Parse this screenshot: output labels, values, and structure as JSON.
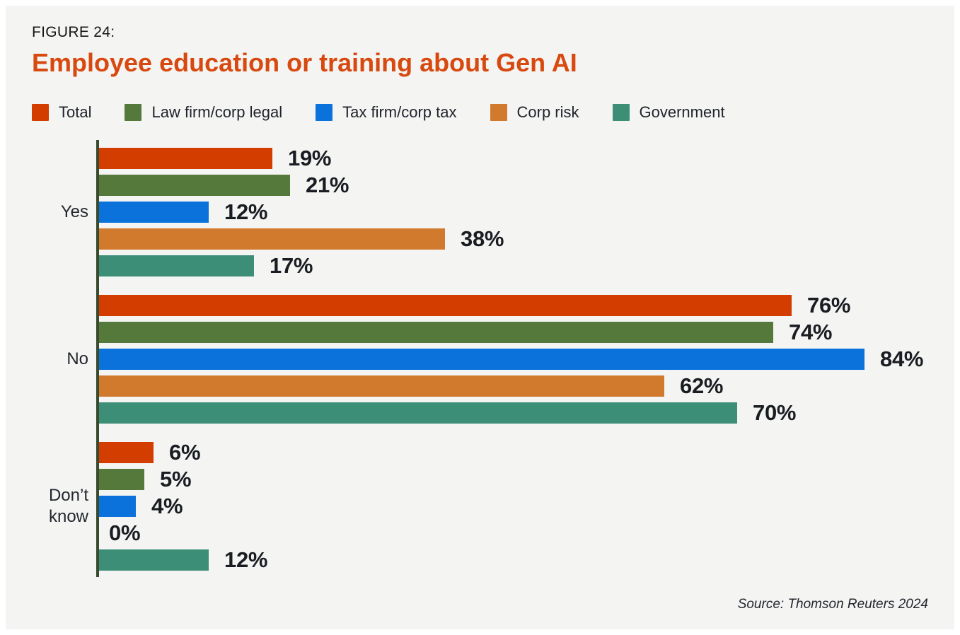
{
  "figure_label": "FIGURE 24:",
  "title": "Employee education or training about Gen AI",
  "source": "Source: Thomson Reuters 2024",
  "colors": {
    "panel_background": "#f4f4f3",
    "page_border": "#ffffff",
    "title_accent": "#d8490f",
    "axis": "#3a4a2e",
    "value_text": "#191c21"
  },
  "chart_data": {
    "type": "bar",
    "orientation": "horizontal",
    "unit": "%",
    "xlim": [
      0,
      100
    ],
    "grid": false,
    "value_labels": true,
    "legend_position": "top",
    "categories": [
      "Yes",
      "No",
      "Don’t know"
    ],
    "series": [
      {
        "name": "Total",
        "color": "#d43d00",
        "values": [
          19,
          76,
          6
        ]
      },
      {
        "name": "Law firm/corp legal",
        "color": "#55793b",
        "values": [
          21,
          74,
          5
        ]
      },
      {
        "name": "Tax firm/corp tax",
        "color": "#0b72dc",
        "values": [
          12,
          84,
          4
        ]
      },
      {
        "name": "Corp risk",
        "color": "#d17a2e",
        "values": [
          38,
          62,
          0
        ]
      },
      {
        "name": "Government",
        "color": "#3d8e77",
        "values": [
          17,
          70,
          12
        ]
      }
    ]
  }
}
